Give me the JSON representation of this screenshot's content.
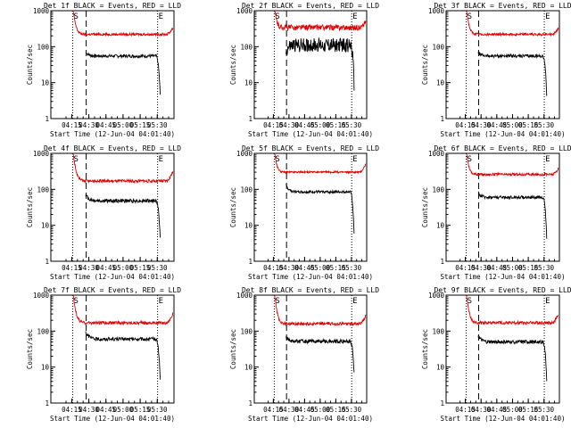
{
  "colors": {
    "events": "#000000",
    "lld": "#e00000",
    "axis": "#000000",
    "background": "#ffffff"
  },
  "common": {
    "xlabel": "Start Time (12-Jun-04 04:01:40)",
    "ylabel": "Counts/sec",
    "xticks": [
      "04:15",
      "04:30",
      "04:45",
      "05:00",
      "05:15",
      "05:30"
    ],
    "yticks": [
      "1",
      "10",
      "100",
      "1000"
    ],
    "s_marker": "S",
    "e_marker": "E",
    "ylim": [
      1,
      1000
    ],
    "xlim_minutes": [
      -5,
      103
    ]
  },
  "chart_data": [
    {
      "type": "line",
      "title": "Det 1f BLACK = Events, RED = LLD",
      "series": [
        {
          "name": "Events",
          "color": "#000000",
          "start": 25.5,
          "end": 91,
          "level": 55,
          "startPeak": 70,
          "noise": 0.1,
          "dropTo": 4
        },
        {
          "name": "LLD",
          "color": "#e00000",
          "start": 14.5,
          "end": 102,
          "level": 220,
          "startPeak": 1000,
          "noise": 0.08,
          "endRise": 330
        }
      ],
      "markers": {
        "S": 14.2,
        "E": 88.6,
        "dash": 26.0
      }
    },
    {
      "type": "line",
      "title": "Det 2f BLACK = Events, RED = LLD",
      "series": [
        {
          "name": "Events",
          "color": "#000000",
          "start": 25.5,
          "end": 91,
          "level": 110,
          "startPeak": 70,
          "noise": 0.45,
          "dropTo": 8
        },
        {
          "name": "LLD",
          "color": "#e00000",
          "start": 14.5,
          "end": 102,
          "level": 340,
          "startPeak": 1000,
          "noise": 0.18,
          "endRise": 500
        }
      ],
      "markers": {
        "S": 14.2,
        "E": 88.6,
        "dash": 26.0
      }
    },
    {
      "type": "line",
      "title": "Det 3f BLACK = Events, RED = LLD",
      "series": [
        {
          "name": "Events",
          "color": "#000000",
          "start": 25.5,
          "end": 91,
          "level": 55,
          "startPeak": 70,
          "noise": 0.1,
          "dropTo": 4
        },
        {
          "name": "LLD",
          "color": "#e00000",
          "start": 14.5,
          "end": 102,
          "level": 220,
          "startPeak": 1000,
          "noise": 0.08,
          "endRise": 330
        }
      ],
      "markers": {
        "S": 14.2,
        "E": 88.6,
        "dash": 26.0
      }
    },
    {
      "type": "line",
      "title": "Det 4f BLACK = Events, RED = LLD",
      "series": [
        {
          "name": "Events",
          "color": "#000000",
          "start": 25.5,
          "end": 91,
          "level": 48,
          "startPeak": 70,
          "noise": 0.12,
          "dropTo": 4
        },
        {
          "name": "LLD",
          "color": "#e00000",
          "start": 14.5,
          "end": 102,
          "level": 170,
          "startPeak": 1000,
          "noise": 0.1,
          "endRise": 300
        }
      ],
      "markers": {
        "S": 14.2,
        "E": 88.6,
        "dash": 26.0
      }
    },
    {
      "type": "line",
      "title": "Det 5f BLACK = Events, RED = LLD",
      "series": [
        {
          "name": "Events",
          "color": "#000000",
          "start": 25.5,
          "end": 91,
          "level": 85,
          "startPeak": 130,
          "noise": 0.08,
          "dropTo": 5
        },
        {
          "name": "LLD",
          "color": "#e00000",
          "start": 14.5,
          "end": 102,
          "level": 300,
          "startPeak": 1000,
          "noise": 0.06,
          "endRise": 500
        }
      ],
      "markers": {
        "S": 14.2,
        "E": 88.6,
        "dash": 26.0
      }
    },
    {
      "type": "line",
      "title": "Det 6f BLACK = Events, RED = LLD",
      "series": [
        {
          "name": "Events",
          "color": "#000000",
          "start": 25.5,
          "end": 91,
          "level": 60,
          "startPeak": 80,
          "noise": 0.1,
          "dropTo": 4
        },
        {
          "name": "LLD",
          "color": "#e00000",
          "start": 14.5,
          "end": 102,
          "level": 260,
          "startPeak": 1000,
          "noise": 0.08,
          "endRise": 380
        }
      ],
      "markers": {
        "S": 14.2,
        "E": 88.6,
        "dash": 26.0
      }
    },
    {
      "type": "line",
      "title": "Det 7f BLACK = Events, RED = LLD",
      "series": [
        {
          "name": "Events",
          "color": "#000000",
          "start": 25.5,
          "end": 91,
          "level": 60,
          "startPeak": 95,
          "noise": 0.11,
          "dropTo": 4
        },
        {
          "name": "LLD",
          "color": "#e00000",
          "start": 14.5,
          "end": 102,
          "level": 170,
          "startPeak": 1000,
          "noise": 0.1,
          "endRise": 300
        }
      ],
      "markers": {
        "S": 14.2,
        "E": 88.6,
        "dash": 26.0
      }
    },
    {
      "type": "line",
      "title": "Det 8f BLACK = Events, RED = LLD",
      "series": [
        {
          "name": "Events",
          "color": "#000000",
          "start": 25.5,
          "end": 91,
          "level": 52,
          "startPeak": 70,
          "noise": 0.12,
          "dropTo": 6
        },
        {
          "name": "LLD",
          "color": "#e00000",
          "start": 14.5,
          "end": 102,
          "level": 160,
          "startPeak": 1000,
          "noise": 0.1,
          "endRise": 260
        }
      ],
      "markers": {
        "S": 14.2,
        "E": 88.6,
        "dash": 26.0
      }
    },
    {
      "type": "line",
      "title": "Det 9f BLACK = Events, RED = LLD",
      "series": [
        {
          "name": "Events",
          "color": "#000000",
          "start": 25.5,
          "end": 91,
          "level": 50,
          "startPeak": 75,
          "noise": 0.12,
          "dropTo": 4
        },
        {
          "name": "LLD",
          "color": "#e00000",
          "start": 14.5,
          "end": 102,
          "level": 170,
          "startPeak": 1000,
          "noise": 0.1,
          "endRise": 300
        }
      ],
      "markers": {
        "S": 14.2,
        "E": 88.6,
        "dash": 26.0
      }
    }
  ]
}
